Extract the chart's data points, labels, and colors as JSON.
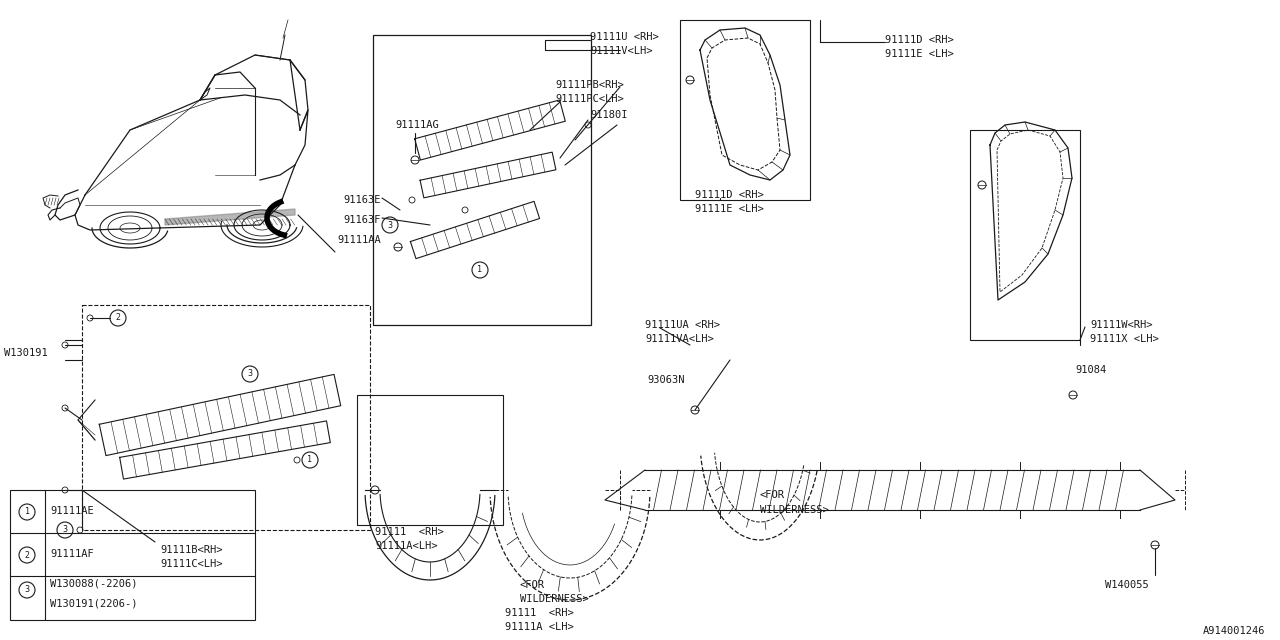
{
  "bg_color": "#ffffff",
  "line_color": "#1a1a1a",
  "text_color": "#1a1a1a",
  "font_size": 7.5,
  "diagram_id": "A914001246",
  "labels": {
    "roof_u": "91111U <RH>",
    "roof_v": "91111V<LH>",
    "roof_pb": "91111PB<RH>",
    "roof_pc": "91111PC<LH>",
    "clip_180i": "91180I",
    "clip_ag": "91111AG",
    "sill_163e": "91163E",
    "sill_163f": "91163F",
    "sill_aa": "91111AA",
    "sill_bc_rh": "91111B<RH>",
    "sill_bc_lh": "91111C<LH>",
    "w130191": "W130191",
    "fender_front_rh": "91111  <RH>",
    "fender_front_lh": "91111A<LH>",
    "fender_wild_rh": "91111  <RH>",
    "fender_wild_lh": "91111A <LH>",
    "for_wild1": "<FOR",
    "wilderness1": "WILDERNESS>",
    "fender_d_rh1": "91111D <RH>",
    "fender_d_lh1": "91111E <LH>",
    "fender_d_rh2": "91111D <RH>",
    "fender_d_lh2": "91111E <LH>",
    "fender_ua_rh": "91111UA <RH>",
    "fender_va_lh": "91111VA<LH>",
    "clip_3063n": "93063N",
    "for_wild2": "<FOR",
    "wilderness2": "WILDERNESS>",
    "pillar_w_rh": "91111W<RH>",
    "pillar_x_lh": "91111X <LH>",
    "clip_84": "91084",
    "w140055": "W140055",
    "legend1": "91111AE",
    "legend2": "91111AF",
    "legend3a": "W130088(-2206)",
    "legend3b": "W130191(2206-)"
  }
}
